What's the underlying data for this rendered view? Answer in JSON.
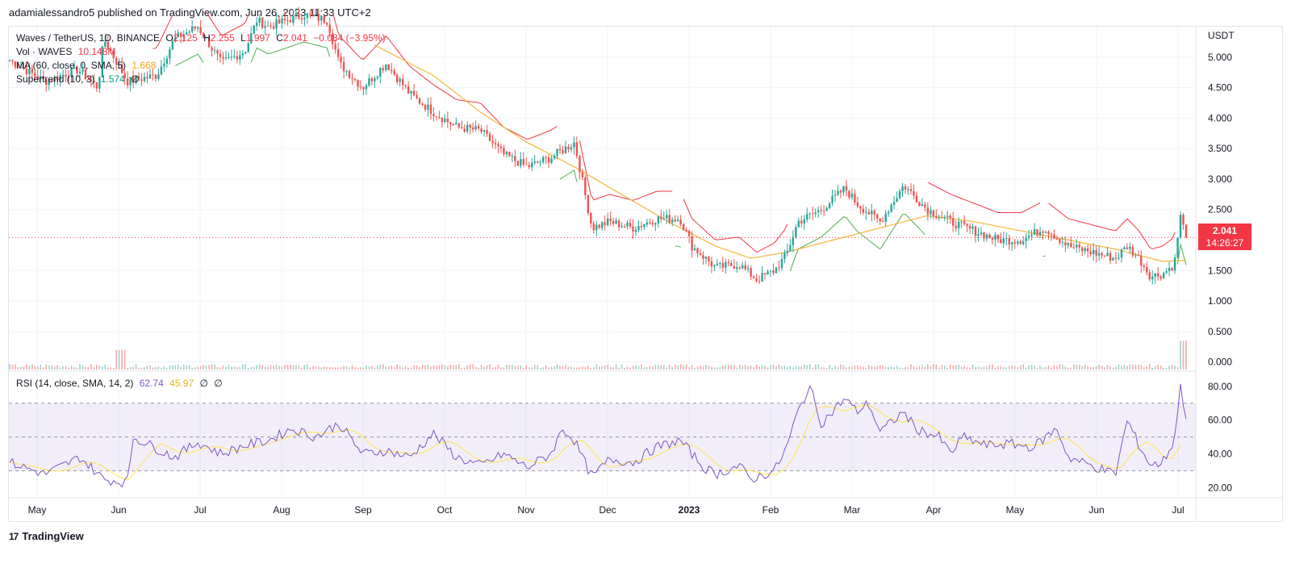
{
  "header": {
    "published": "adamialessandro5 published on TradingView.com, Jun 26, 2023 11:33 UTC+2"
  },
  "legend": {
    "pair": "Waves / TetherUS, 1D, BINANCE",
    "o_label": "O",
    "o_value": "2.125",
    "h_label": "H",
    "h_value": "2.255",
    "l_label": "L",
    "l_value": "1.997",
    "c_label": "C",
    "c_value": "2.041",
    "change": "−0.084 (−3.95%)",
    "vol_label": "Vol · WAVES",
    "vol_value": "10.148M",
    "ma_label": "MA (60, close, 0, SMA, 5)",
    "ma_value": "1.668",
    "st_label": "Supertrend (10, 3)",
    "st_value": "1.574",
    "st_extra": "∅",
    "rsi_label": "RSI (14, close, SMA, 14, 2)",
    "rsi_value": "62.74",
    "rsi_ma_value": "45.97",
    "rsi_extra1": "∅",
    "rsi_extra2": "∅"
  },
  "price_tag": {
    "price": "2.041",
    "countdown": "14:26:27"
  },
  "brand": {
    "logo": "17",
    "name": "TradingView"
  },
  "colors": {
    "up": "#26a69a",
    "down": "#ef5350",
    "ma": "#f7b539",
    "st_up": "#4caf50",
    "st_down": "#f23645",
    "rsi": "#7e57c2",
    "rsi_ma": "#ffe44d"
  },
  "chart_data": {
    "type": "candlestick",
    "price_axis": {
      "unit": "USDT",
      "ticks": [
        "5.000",
        "4.500",
        "4.000",
        "3.500",
        "3.000",
        "2.500",
        "1.500",
        "1.000",
        "0.500",
        "0.000"
      ],
      "ylim": [
        -0.15,
        5.5
      ]
    },
    "rsi_axis": {
      "ticks": [
        "80.00",
        "60.00",
        "40.00",
        "20.00"
      ],
      "ylim": [
        15,
        88
      ],
      "bands": [
        30,
        50,
        70
      ]
    },
    "x_labels": [
      "May",
      "Jun",
      "Jul",
      "Aug",
      "Sep",
      "Oct",
      "Nov",
      "Dec",
      "2023",
      "Feb",
      "Mar",
      "Apr",
      "May",
      "Jun",
      "Jul"
    ],
    "close_series": [
      {
        "t": 0,
        "c": 4.95
      },
      {
        "t": 0.03,
        "c": 4.6
      },
      {
        "t": 0.058,
        "c": 4.8
      },
      {
        "t": 0.075,
        "c": 4.5
      },
      {
        "t": 0.08,
        "c": 5.3
      },
      {
        "t": 0.1,
        "c": 4.6
      },
      {
        "t": 0.125,
        "c": 4.7
      },
      {
        "t": 0.14,
        "c": 5.3
      },
      {
        "t": 0.16,
        "c": 5.5
      },
      {
        "t": 0.18,
        "c": 4.9
      },
      {
        "t": 0.2,
        "c": 5.1
      },
      {
        "t": 0.21,
        "c": 5.6
      },
      {
        "t": 0.22,
        "c": 5.5
      },
      {
        "t": 0.25,
        "c": 5.7
      },
      {
        "t": 0.27,
        "c": 5.6
      },
      {
        "t": 0.28,
        "c": 4.9
      },
      {
        "t": 0.3,
        "c": 4.5
      },
      {
        "t": 0.32,
        "c": 4.9
      },
      {
        "t": 0.34,
        "c": 4.4
      },
      {
        "t": 0.36,
        "c": 4.1
      },
      {
        "t": 0.38,
        "c": 3.85
      },
      {
        "t": 0.4,
        "c": 3.8
      },
      {
        "t": 0.42,
        "c": 3.4
      },
      {
        "t": 0.44,
        "c": 3.2
      },
      {
        "t": 0.46,
        "c": 3.35
      },
      {
        "t": 0.48,
        "c": 3.6
      },
      {
        "t": 0.495,
        "c": 2.2
      },
      {
        "t": 0.51,
        "c": 2.3
      },
      {
        "t": 0.53,
        "c": 2.2
      },
      {
        "t": 0.55,
        "c": 2.35
      },
      {
        "t": 0.57,
        "c": 2.35
      },
      {
        "t": 0.58,
        "c": 1.9
      },
      {
        "t": 0.6,
        "c": 1.55
      },
      {
        "t": 0.62,
        "c": 1.6
      },
      {
        "t": 0.635,
        "c": 1.35
      },
      {
        "t": 0.65,
        "c": 1.5
      },
      {
        "t": 0.66,
        "c": 1.75
      },
      {
        "t": 0.67,
        "c": 2.3
      },
      {
        "t": 0.69,
        "c": 2.5
      },
      {
        "t": 0.71,
        "c": 2.85
      },
      {
        "t": 0.72,
        "c": 2.6
      },
      {
        "t": 0.74,
        "c": 2.3
      },
      {
        "t": 0.76,
        "c": 2.9
      },
      {
        "t": 0.78,
        "c": 2.5
      },
      {
        "t": 0.8,
        "c": 2.3
      },
      {
        "t": 0.82,
        "c": 2.15
      },
      {
        "t": 0.84,
        "c": 2.0
      },
      {
        "t": 0.86,
        "c": 2.0
      },
      {
        "t": 0.88,
        "c": 2.2
      },
      {
        "t": 0.9,
        "c": 1.9
      },
      {
        "t": 0.92,
        "c": 1.8
      },
      {
        "t": 0.94,
        "c": 1.7
      },
      {
        "t": 0.95,
        "c": 1.9
      },
      {
        "t": 0.96,
        "c": 1.7
      },
      {
        "t": 0.97,
        "c": 1.4
      },
      {
        "t": 0.98,
        "c": 1.45
      },
      {
        "t": 0.99,
        "c": 1.6
      },
      {
        "t": 0.995,
        "c": 2.4
      },
      {
        "t": 1.0,
        "c": 2.041
      }
    ],
    "ma_series": [
      {
        "t": 0.31,
        "v": 5.2
      },
      {
        "t": 0.36,
        "v": 4.7
      },
      {
        "t": 0.4,
        "v": 4.1
      },
      {
        "t": 0.44,
        "v": 3.6
      },
      {
        "t": 0.48,
        "v": 3.2
      },
      {
        "t": 0.52,
        "v": 2.75
      },
      {
        "t": 0.56,
        "v": 2.3
      },
      {
        "t": 0.6,
        "v": 1.9
      },
      {
        "t": 0.63,
        "v": 1.7
      },
      {
        "t": 0.66,
        "v": 1.8
      },
      {
        "t": 0.7,
        "v": 2.0
      },
      {
        "t": 0.74,
        "v": 2.2
      },
      {
        "t": 0.78,
        "v": 2.4
      },
      {
        "t": 0.82,
        "v": 2.3
      },
      {
        "t": 0.86,
        "v": 2.15
      },
      {
        "t": 0.9,
        "v": 2.0
      },
      {
        "t": 0.94,
        "v": 1.85
      },
      {
        "t": 0.98,
        "v": 1.65
      },
      {
        "t": 1.0,
        "v": 1.668
      }
    ],
    "rsi_series": [
      {
        "t": 0,
        "v": 35
      },
      {
        "t": 0.03,
        "v": 28
      },
      {
        "t": 0.06,
        "v": 38
      },
      {
        "t": 0.08,
        "v": 25
      },
      {
        "t": 0.1,
        "v": 23
      },
      {
        "t": 0.105,
        "v": 50
      },
      {
        "t": 0.12,
        "v": 45
      },
      {
        "t": 0.14,
        "v": 38
      },
      {
        "t": 0.16,
        "v": 47
      },
      {
        "t": 0.18,
        "v": 40
      },
      {
        "t": 0.2,
        "v": 45
      },
      {
        "t": 0.22,
        "v": 48
      },
      {
        "t": 0.24,
        "v": 55
      },
      {
        "t": 0.26,
        "v": 50
      },
      {
        "t": 0.28,
        "v": 58
      },
      {
        "t": 0.3,
        "v": 40
      },
      {
        "t": 0.32,
        "v": 42
      },
      {
        "t": 0.34,
        "v": 38
      },
      {
        "t": 0.36,
        "v": 52
      },
      {
        "t": 0.38,
        "v": 38
      },
      {
        "t": 0.4,
        "v": 33
      },
      {
        "t": 0.42,
        "v": 40
      },
      {
        "t": 0.44,
        "v": 32
      },
      {
        "t": 0.46,
        "v": 40
      },
      {
        "t": 0.47,
        "v": 55
      },
      {
        "t": 0.48,
        "v": 48
      },
      {
        "t": 0.495,
        "v": 26
      },
      {
        "t": 0.51,
        "v": 37
      },
      {
        "t": 0.53,
        "v": 35
      },
      {
        "t": 0.55,
        "v": 44
      },
      {
        "t": 0.57,
        "v": 48
      },
      {
        "t": 0.59,
        "v": 32
      },
      {
        "t": 0.6,
        "v": 28
      },
      {
        "t": 0.62,
        "v": 33
      },
      {
        "t": 0.63,
        "v": 25
      },
      {
        "t": 0.65,
        "v": 30
      },
      {
        "t": 0.66,
        "v": 43
      },
      {
        "t": 0.67,
        "v": 65
      },
      {
        "t": 0.68,
        "v": 80
      },
      {
        "t": 0.69,
        "v": 58
      },
      {
        "t": 0.71,
        "v": 73
      },
      {
        "t": 0.72,
        "v": 65
      },
      {
        "t": 0.73,
        "v": 70
      },
      {
        "t": 0.74,
        "v": 53
      },
      {
        "t": 0.76,
        "v": 65
      },
      {
        "t": 0.77,
        "v": 55
      },
      {
        "t": 0.79,
        "v": 50
      },
      {
        "t": 0.8,
        "v": 40
      },
      {
        "t": 0.81,
        "v": 50
      },
      {
        "t": 0.83,
        "v": 45
      },
      {
        "t": 0.85,
        "v": 46
      },
      {
        "t": 0.87,
        "v": 44
      },
      {
        "t": 0.89,
        "v": 55
      },
      {
        "t": 0.9,
        "v": 38
      },
      {
        "t": 0.92,
        "v": 33
      },
      {
        "t": 0.94,
        "v": 28
      },
      {
        "t": 0.95,
        "v": 60
      },
      {
        "t": 0.96,
        "v": 45
      },
      {
        "t": 0.97,
        "v": 33
      },
      {
        "t": 0.98,
        "v": 35
      },
      {
        "t": 0.99,
        "v": 48
      },
      {
        "t": 0.995,
        "v": 80
      },
      {
        "t": 1.0,
        "v": 62.74
      }
    ]
  }
}
